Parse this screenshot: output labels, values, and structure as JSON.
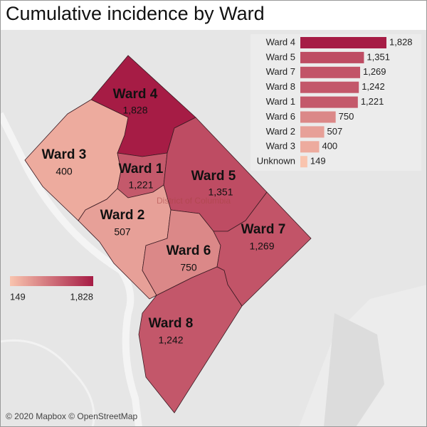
{
  "title": "Cumulative incidence by Ward",
  "color_range": [
    "#f9c4ae",
    "#a61c45"
  ],
  "chart_data": {
    "type": "bar",
    "orientation": "horizontal",
    "categories": [
      "Ward 4",
      "Ward 5",
      "Ward 7",
      "Ward 8",
      "Ward 1",
      "Ward 6",
      "Ward 2",
      "Ward 3",
      "Unknown"
    ],
    "values": [
      1828,
      1351,
      1269,
      1242,
      1221,
      750,
      507,
      400,
      149
    ],
    "value_labels": [
      "1,828",
      "1,351",
      "1,269",
      "1,242",
      "1,221",
      "750",
      "507",
      "400",
      "149"
    ]
  },
  "map": {
    "regions": [
      {
        "name": "Ward 4",
        "value": 1828,
        "value_label": "1,828"
      },
      {
        "name": "Ward 3",
        "value": 400,
        "value_label": "400"
      },
      {
        "name": "Ward 1",
        "value": 1221,
        "value_label": "1,221"
      },
      {
        "name": "Ward 5",
        "value": 1351,
        "value_label": "1,351"
      },
      {
        "name": "Ward 2",
        "value": 507,
        "value_label": "507"
      },
      {
        "name": "Ward 6",
        "value": 750,
        "value_label": "750"
      },
      {
        "name": "Ward 7",
        "value": 1269,
        "value_label": "1,269"
      },
      {
        "name": "Ward 8",
        "value": 1242,
        "value_label": "1,242"
      }
    ],
    "place_label": "District of Columbia",
    "legend": {
      "min": 149,
      "min_label": "149",
      "max": 1828,
      "max_label": "1,828"
    },
    "attribution": "© 2020 Mapbox © OpenStreetMap"
  }
}
